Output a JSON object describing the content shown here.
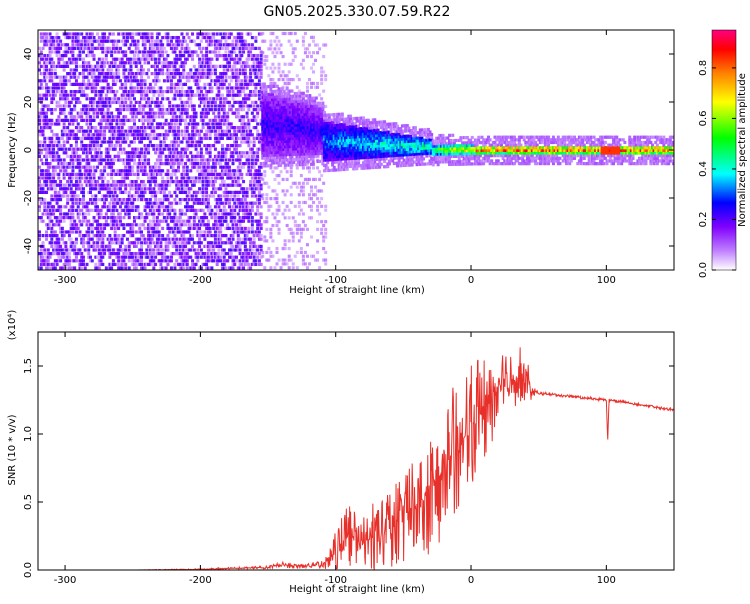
{
  "page": {
    "title": "GN05.2025.330.07.59.R22"
  },
  "chart_data": [
    {
      "type": "heatmap",
      "title": "GN05.2025.330.07.59.R22",
      "xlabel": "Height of straight line (km)",
      "ylabel": "Frequency (Hz)",
      "xlim": [
        -320,
        150
      ],
      "ylim": [
        -50,
        50
      ],
      "x_ticks": [
        -300,
        -200,
        -100,
        0,
        100
      ],
      "y_ticks": [
        -40,
        -20,
        0,
        20,
        40
      ],
      "colorbar": {
        "label": "Normalized spectral amplitude",
        "range": [
          0.0,
          0.95
        ],
        "ticks": [
          0.0,
          0.2,
          0.4,
          0.6,
          0.8
        ],
        "colormap": [
          "#ffffff",
          "#8000ff",
          "#0000ff",
          "#00ffff",
          "#00ff00",
          "#ffff00",
          "#ff8000",
          "#ff0000",
          "#ff0080"
        ]
      },
      "regions": [
        {
          "x_range": [
            -320,
            -155
          ],
          "freq_range": [
            -50,
            50
          ],
          "amplitude": 0.05,
          "description_level": "sparse noise"
        },
        {
          "x_range": [
            -155,
            -110
          ],
          "freq_range": [
            -5,
            25
          ],
          "amplitude": 0.3
        },
        {
          "x_range": [
            -110,
            -30
          ],
          "freq_range": [
            -5,
            10
          ],
          "amplitude": 0.45
        },
        {
          "x_range": [
            -30,
            150
          ],
          "freq_range": [
            -1,
            3
          ],
          "amplitude": 0.9
        }
      ]
    },
    {
      "type": "line",
      "xlabel": "Height of straight line (km)",
      "ylabel": "SNR (10 * v/v)",
      "y_multiplier": "(x10⁴)",
      "xlim": [
        -320,
        150
      ],
      "ylim": [
        0,
        1.75
      ],
      "x_ticks": [
        -300,
        -200,
        -100,
        0,
        100
      ],
      "y_ticks": [
        0.0,
        0.5,
        1.0,
        1.5
      ],
      "y_tick_labels": [
        "0.0",
        "0.5",
        "1.0",
        "1.5"
      ],
      "series": [
        {
          "color": "#e8302a",
          "x": [
            -320,
            -300,
            -250,
            -200,
            -150,
            -140,
            -130,
            -120,
            -110,
            -100,
            -90,
            -80,
            -70,
            -60,
            -50,
            -40,
            -30,
            -20,
            -10,
            0,
            10,
            20,
            30,
            40,
            45,
            50,
            60,
            70,
            80,
            90,
            100,
            101,
            102,
            110,
            120,
            130,
            140,
            150
          ],
          "y": [
            0.0,
            0.0,
            0.0,
            0.005,
            0.02,
            0.04,
            0.03,
            0.03,
            0.04,
            0.15,
            0.25,
            0.2,
            0.25,
            0.3,
            0.4,
            0.5,
            0.55,
            0.75,
            0.9,
            1.05,
            1.2,
            1.3,
            1.4,
            1.45,
            1.3,
            1.3,
            1.29,
            1.28,
            1.27,
            1.26,
            1.25,
            0.95,
            1.25,
            1.24,
            1.22,
            1.21,
            1.19,
            1.18
          ],
          "noise_amplitude": [
            0.0,
            0.0,
            0.0,
            0.005,
            0.01,
            0.02,
            0.02,
            0.02,
            0.03,
            0.15,
            0.25,
            0.2,
            0.3,
            0.3,
            0.35,
            0.4,
            0.45,
            0.5,
            0.5,
            0.45,
            0.4,
            0.35,
            0.25,
            0.2,
            0.05,
            0.015,
            0.01,
            0.01,
            0.01,
            0.01,
            0.01,
            0.01,
            0.01,
            0.01,
            0.01,
            0.01,
            0.01,
            0.01
          ]
        }
      ]
    }
  ]
}
